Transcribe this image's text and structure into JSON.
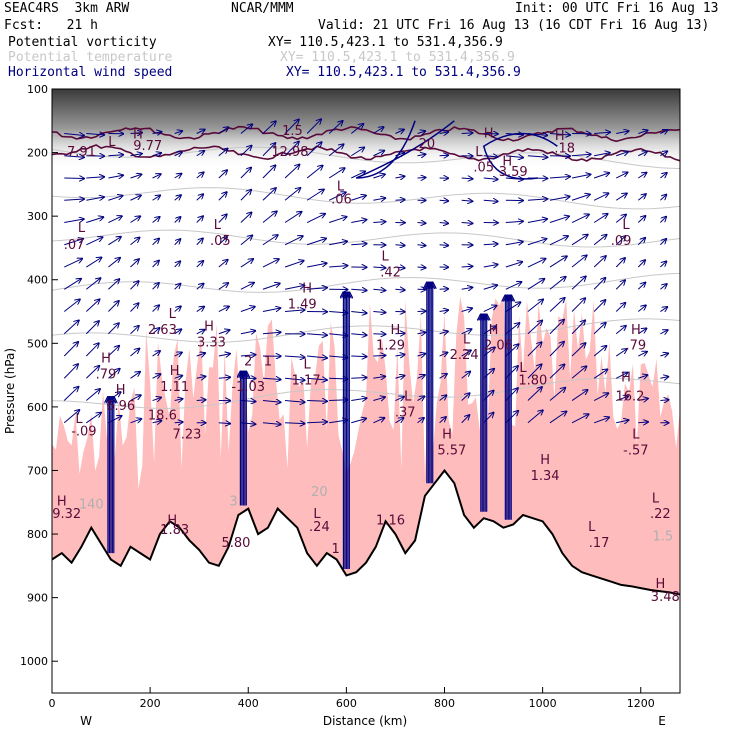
{
  "header": {
    "model": "SEAC4RS  3km ARW",
    "org": "NCAR/MMM",
    "init": "Init: 00 UTC Fri 16 Aug 13",
    "fcst": "Fcst:   21 h",
    "valid": "Valid: 21 UTC Fri 16 Aug 13 (16 CDT Fri 16 Aug 13)"
  },
  "legend": [
    {
      "name": "Potential vorticity",
      "xy": "XY= 110.5,423.1 to 531.4,356.9",
      "color": "#000000"
    },
    {
      "name": "Potential temperature",
      "xy": "XY= 110.5,423.1 to 531.4,356.9",
      "color": "#c8c8c8"
    },
    {
      "name": "Horizontal wind speed",
      "xy": "XY= 110.5,423.1 to 531.4,356.9",
      "color": "#000080"
    }
  ],
  "colors": {
    "pv_fill": "#ffbcbc",
    "pv_line": "#5a0a3a",
    "temp": "#c8c8c8",
    "wind": "#000080",
    "terrain": "#000000"
  },
  "chart_data": {
    "type": "cross-section",
    "xlabel": "Distance (km)",
    "ylabel": "Pressure (hPa)",
    "xlim": [
      0,
      1280
    ],
    "ylim": [
      1050,
      100
    ],
    "x_ticks": [
      0,
      200,
      400,
      600,
      800,
      1000,
      1200
    ],
    "y_ticks": [
      100,
      200,
      300,
      400,
      500,
      600,
      700,
      800,
      900,
      1000
    ],
    "left_end": "W",
    "right_end": "E",
    "terrain": {
      "x": [
        0,
        20,
        40,
        60,
        80,
        100,
        120,
        140,
        160,
        180,
        200,
        220,
        240,
        260,
        280,
        300,
        320,
        340,
        360,
        380,
        400,
        420,
        440,
        460,
        480,
        500,
        520,
        540,
        560,
        580,
        600,
        620,
        640,
        660,
        680,
        700,
        720,
        740,
        760,
        780,
        800,
        820,
        840,
        860,
        880,
        900,
        920,
        940,
        960,
        980,
        1000,
        1020,
        1040,
        1060,
        1080,
        1100,
        1120,
        1140,
        1160,
        1180,
        1200,
        1220,
        1240,
        1260,
        1280
      ],
      "p": [
        840,
        830,
        845,
        820,
        790,
        815,
        840,
        850,
        820,
        830,
        840,
        800,
        780,
        790,
        810,
        825,
        845,
        850,
        820,
        770,
        760,
        800,
        790,
        760,
        775,
        790,
        830,
        850,
        830,
        840,
        865,
        860,
        845,
        820,
        780,
        800,
        830,
        810,
        740,
        720,
        700,
        720,
        770,
        790,
        775,
        780,
        790,
        785,
        770,
        775,
        780,
        800,
        830,
        850,
        860,
        865,
        870,
        875,
        880,
        882,
        885,
        888,
        890,
        892,
        895
      ]
    },
    "pv_labels": [
      {
        "t": "H",
        "x": 175,
        "p": 178
      },
      {
        "t": "9.77",
        "x": 195,
        "p": 196
      },
      {
        "t": "1.5",
        "x": 490,
        "p": 172
      },
      {
        "t": "12.98",
        "x": 485,
        "p": 205
      },
      {
        "t": ".20",
        "x": 760,
        "p": 193
      },
      {
        "t": "H",
        "x": 890,
        "p": 176
      },
      {
        "t": "L",
        "x": 870,
        "p": 205
      },
      {
        "t": ".05",
        "x": 880,
        "p": 230
      },
      {
        "t": "H",
        "x": 1035,
        "p": 180
      },
      {
        "t": ".18",
        "x": 1045,
        "p": 200
      },
      {
        "t": "H",
        "x": 928,
        "p": 220
      },
      {
        "t": "3.59",
        "x": 940,
        "p": 237
      },
      {
        "t": "L",
        "x": 122,
        "p": 190
      },
      {
        "t": "7.91",
        "x": 60,
        "p": 205
      },
      {
        "t": "L",
        "x": 588,
        "p": 260
      },
      {
        "t": ".06",
        "x": 590,
        "p": 280
      },
      {
        "t": "L",
        "x": 60,
        "p": 325
      },
      {
        "t": ".07",
        "x": 45,
        "p": 352
      },
      {
        "t": "L",
        "x": 337,
        "p": 320
      },
      {
        "t": ".05",
        "x": 343,
        "p": 345
      },
      {
        "t": "L",
        "x": 679,
        "p": 370
      },
      {
        "t": ".42",
        "x": 690,
        "p": 395
      },
      {
        "t": "L",
        "x": 1170,
        "p": 320
      },
      {
        "t": ".09",
        "x": 1160,
        "p": 345
      },
      {
        "t": "H",
        "x": 520,
        "p": 420
      },
      {
        "t": "1.49",
        "x": 510,
        "p": 445
      },
      {
        "t": "L",
        "x": 245,
        "p": 460
      },
      {
        "t": "2.63",
        "x": 225,
        "p": 485
      },
      {
        "t": "H",
        "x": 320,
        "p": 480
      },
      {
        "t": "3.33",
        "x": 325,
        "p": 505
      },
      {
        "t": "H",
        "x": 700,
        "p": 485
      },
      {
        "t": "1.29",
        "x": 690,
        "p": 510
      },
      {
        "t": "L",
        "x": 845,
        "p": 500
      },
      {
        "t": "2.24",
        "x": 840,
        "p": 525
      },
      {
        "t": "H",
        "x": 900,
        "p": 485
      },
      {
        "t": "2.06",
        "x": 910,
        "p": 510
      },
      {
        "t": "H",
        "x": 1190,
        "p": 485
      },
      {
        "t": ".79",
        "x": 1190,
        "p": 510
      },
      {
        "t": "H",
        "x": 110,
        "p": 530
      },
      {
        "t": ".79",
        "x": 110,
        "p": 555
      },
      {
        "t": "2",
        "x": 400,
        "p": 535
      },
      {
        "t": "1",
        "x": 440,
        "p": 535
      },
      {
        "t": "L",
        "x": 520,
        "p": 540
      },
      {
        "t": "1.17",
        "x": 518,
        "p": 565
      },
      {
        "t": "L",
        "x": 960,
        "p": 545
      },
      {
        "t": "1.80",
        "x": 980,
        "p": 565
      },
      {
        "t": "H",
        "x": 250,
        "p": 550
      },
      {
        "t": "1.11",
        "x": 250,
        "p": 575
      },
      {
        "t": "H",
        "x": 1170,
        "p": 560
      },
      {
        "t": "16.2",
        "x": 1178,
        "p": 590
      },
      {
        "t": "H",
        "x": 140,
        "p": 580
      },
      {
        "t": "6.96",
        "x": 140,
        "p": 605
      },
      {
        "t": "-1.03",
        "x": 400,
        "p": 575
      },
      {
        "t": "L",
        "x": 725,
        "p": 590
      },
      {
        "t": ".37",
        "x": 720,
        "p": 615
      },
      {
        "t": "18.6",
        "x": 225,
        "p": 620
      },
      {
        "t": "L",
        "x": 55,
        "p": 625
      },
      {
        "t": "-.09",
        "x": 65,
        "p": 645
      },
      {
        "t": "7.23",
        "x": 275,
        "p": 650
      },
      {
        "t": "H",
        "x": 805,
        "p": 650
      },
      {
        "t": "5.57",
        "x": 815,
        "p": 675
      },
      {
        "t": "L",
        "x": 1190,
        "p": 650
      },
      {
        "t": "-.57",
        "x": 1190,
        "p": 675
      },
      {
        "t": "H",
        "x": 1005,
        "p": 690
      },
      {
        "t": "1.34",
        "x": 1005,
        "p": 715
      },
      {
        "t": "H",
        "x": 20,
        "p": 755
      },
      {
        "t": "9.32",
        "x": 30,
        "p": 775
      },
      {
        "t": "L",
        "x": 1230,
        "p": 750
      },
      {
        "t": ".22",
        "x": 1240,
        "p": 775
      },
      {
        "t": "H",
        "x": 245,
        "p": 785
      },
      {
        "t": "1.83",
        "x": 250,
        "p": 800
      },
      {
        "t": "5.80",
        "x": 375,
        "p": 820
      },
      {
        "t": "L",
        "x": 540,
        "p": 775
      },
      {
        "t": ".24",
        "x": 545,
        "p": 795
      },
      {
        "t": "1.16",
        "x": 690,
        "p": 785
      },
      {
        "t": "L",
        "x": 1100,
        "p": 795
      },
      {
        "t": ".17",
        "x": 1115,
        "p": 820
      },
      {
        "t": "H",
        "x": 1240,
        "p": 885
      },
      {
        "t": "3.48",
        "x": 1250,
        "p": 905
      },
      {
        "t": "1",
        "x": 578,
        "p": 830
      }
    ],
    "theta_labels": [
      {
        "t": "140",
        "x": 80,
        "p": 760
      },
      {
        "t": "20",
        "x": 545,
        "p": 740
      },
      {
        "t": "3",
        "x": 370,
        "p": 755
      },
      {
        "t": "1.5",
        "x": 1245,
        "p": 810
      }
    ]
  }
}
